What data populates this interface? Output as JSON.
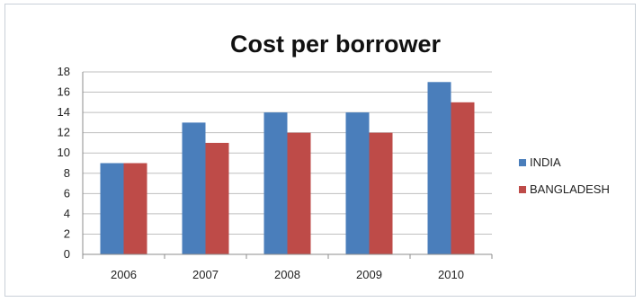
{
  "chart_data": {
    "type": "bar",
    "title": "Cost per borrower",
    "categories": [
      "2006",
      "2007",
      "2008",
      "2009",
      "2010"
    ],
    "series": [
      {
        "name": "INDIA",
        "color": "#4a7ebb",
        "values": [
          9,
          13,
          14,
          14,
          17
        ]
      },
      {
        "name": "BANGLADESH",
        "color": "#be4b48",
        "values": [
          9,
          11,
          12,
          12,
          15
        ]
      }
    ],
    "ylim": [
      0,
      18
    ],
    "yticks": [
      0,
      2,
      4,
      6,
      8,
      10,
      12,
      14,
      16,
      18
    ],
    "grid": true,
    "legend": "right"
  }
}
